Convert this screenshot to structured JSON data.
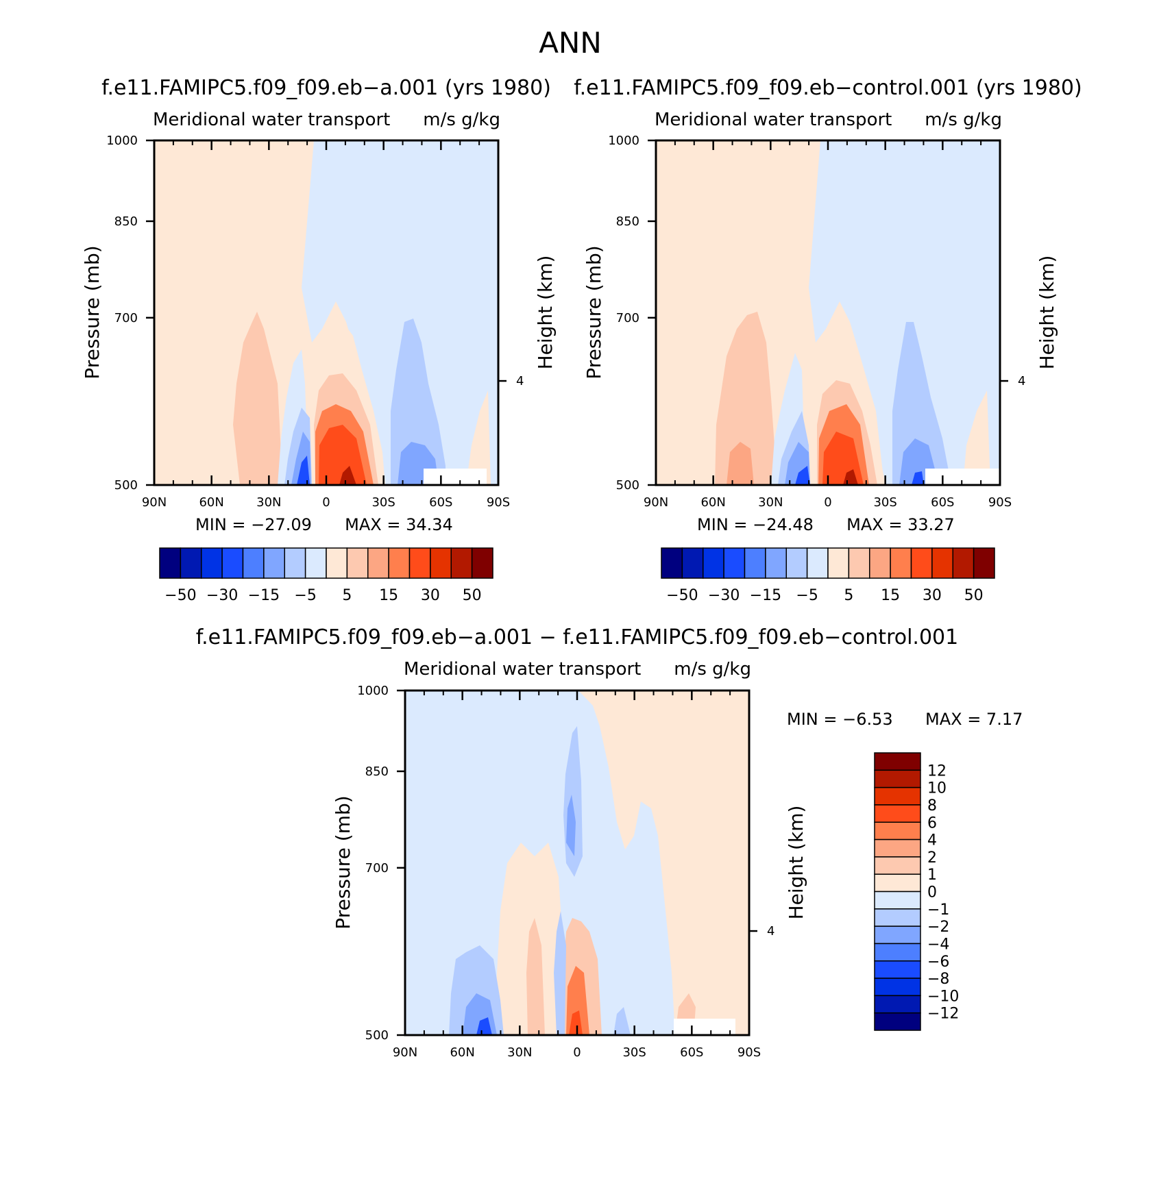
{
  "title": "ANN",
  "colors": {
    "neg": [
      "#00007f",
      "#0019b2",
      "#0033e5",
      "#1a4cff",
      "#4d7fff",
      "#80a6ff",
      "#b3ccff",
      "#dbeafe"
    ],
    "pos": [
      "#fee8d6",
      "#fdc9b0",
      "#fca683",
      "#ff7f4d",
      "#ff4c1a",
      "#e53300",
      "#b21900",
      "#7f0000"
    ],
    "diff_neg": [
      "#00007f",
      "#0019b2",
      "#0033e5",
      "#1a4cff",
      "#4d7fff",
      "#80a6ff",
      "#b3ccff",
      "#dbeafe"
    ],
    "diff_pos": [
      "#fee8d6",
      "#fdc9b0",
      "#fca683",
      "#ff7f4d",
      "#ff4c1a",
      "#e53300",
      "#b21900",
      "#7f0000"
    ]
  },
  "chart_data": [
    {
      "type": "heatmap",
      "id": "panel-a",
      "title": "f.e11.FAMIPC5.f09_f09.eb−a.001 (yrs 1980)",
      "variable": "Meridional water transport",
      "units": "m/s g/kg",
      "xlabel": "",
      "ylabel": "Pressure (mb)",
      "ylabel_right": "Height (km)",
      "x_ticks": [
        "90N",
        "60N",
        "30N",
        "0",
        "30S",
        "60S",
        "90S"
      ],
      "y_ticks": [
        "500",
        "700",
        "850",
        "1000"
      ],
      "right_ticks": [
        "4"
      ],
      "ylim": [
        1000,
        500
      ],
      "min_label": "MIN =  −27.09",
      "max_label": "MAX =   34.34",
      "min": -27.09,
      "max": 34.34,
      "colorbar_labels": [
        "−50",
        "−30",
        "−15",
        "−5",
        "5",
        "15",
        "30",
        "50"
      ],
      "colorbar_levels": [
        -50,
        -40,
        -30,
        -20,
        -15,
        -10,
        -5,
        0,
        5,
        10,
        15,
        20,
        30,
        40,
        50
      ]
    },
    {
      "type": "heatmap",
      "id": "panel-control",
      "title": "f.e11.FAMIPC5.f09_f09.eb−control.001 (yrs 1980)",
      "variable": "Meridional water transport",
      "units": "m/s g/kg",
      "xlabel": "",
      "ylabel": "Pressure (mb)",
      "ylabel_right": "Height (km)",
      "x_ticks": [
        "90N",
        "60N",
        "30N",
        "0",
        "30S",
        "60S",
        "90S"
      ],
      "y_ticks": [
        "500",
        "700",
        "850",
        "1000"
      ],
      "right_ticks": [
        "4"
      ],
      "ylim": [
        1000,
        500
      ],
      "min_label": "MIN =  −24.48",
      "max_label": "MAX =   33.27",
      "min": -24.48,
      "max": 33.27,
      "colorbar_labels": [
        "−50",
        "−30",
        "−15",
        "−5",
        "5",
        "15",
        "30",
        "50"
      ],
      "colorbar_levels": [
        -50,
        -40,
        -30,
        -20,
        -15,
        -10,
        -5,
        0,
        5,
        10,
        15,
        20,
        30,
        40,
        50
      ]
    },
    {
      "type": "heatmap",
      "id": "panel-diff",
      "title": "f.e11.FAMIPC5.f09_f09.eb−a.001 − f.e11.FAMIPC5.f09_f09.eb−control.001",
      "variable": "Meridional water transport",
      "units": "m/s g/kg",
      "xlabel": "",
      "ylabel": "Pressure (mb)",
      "ylabel_right": "Height (km)",
      "x_ticks": [
        "90N",
        "60N",
        "30N",
        "0",
        "30S",
        "60S",
        "90S"
      ],
      "y_ticks": [
        "500",
        "700",
        "850",
        "1000"
      ],
      "right_ticks": [
        "4"
      ],
      "ylim": [
        1000,
        500
      ],
      "min_label": "MIN =    −6.53",
      "max_label": "MAX =     7.17",
      "min": -6.53,
      "max": 7.17,
      "colorbar_labels": [
        "12",
        "10",
        "8",
        "6",
        "4",
        "2",
        "1",
        "0",
        "−1",
        "−2",
        "−4",
        "−6",
        "−8",
        "−10",
        "−12"
      ],
      "colorbar_levels": [
        -12,
        -10,
        -8,
        -6,
        -4,
        -2,
        -1,
        0,
        1,
        2,
        4,
        6,
        8,
        10,
        12
      ]
    }
  ]
}
